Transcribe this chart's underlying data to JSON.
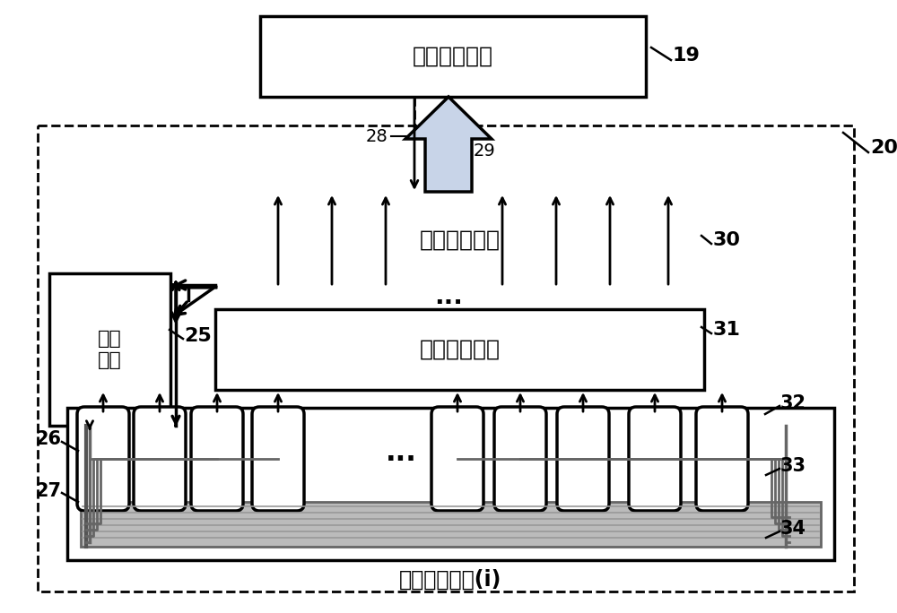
{
  "bg_color": "#ffffff",
  "fig_w": 10.0,
  "fig_h": 6.84,
  "dpi": 100,
  "modules": {
    "data_transfer": "数据传输模块",
    "signal_demod": "信号解调模块",
    "photo_convert": "光电转换模块",
    "light_source": "光源\n模块",
    "signal_collect": "信号采集模块(i)"
  },
  "black": "#000000",
  "white": "#ffffff",
  "gray_line": "#888888",
  "gray_fill": "#bbbbbb",
  "arrow_fill": "#c8d4e8"
}
